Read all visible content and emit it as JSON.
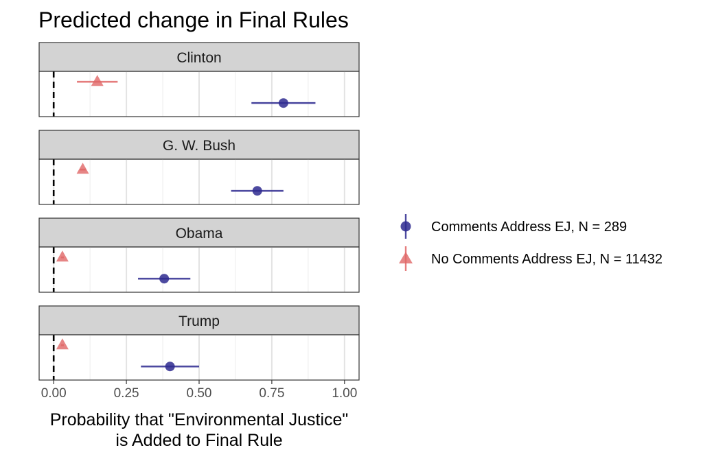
{
  "chart_data": {
    "type": "scatter",
    "title": "Predicted change in Final Rules",
    "xlabel": "Probability that \"Environmental Justice\"\nis Added to Final Rule",
    "ylabel": "",
    "xlim": [
      -0.05,
      1.05
    ],
    "xticks": [
      "0.00",
      "0.25",
      "0.50",
      "0.75",
      "1.00"
    ],
    "xtick_values": [
      0,
      0.25,
      0.5,
      0.75,
      1.0
    ],
    "reference_line": 0,
    "grid": true,
    "legend_position": "right",
    "panels": [
      "Clinton",
      "G. W. Bush",
      "Obama",
      "Trump"
    ],
    "series": [
      {
        "name": "Comments Address EJ, N = 289",
        "shape": "circle",
        "color": "#2e2a8f",
        "points": [
          {
            "panel": "Clinton",
            "estimate": 0.79,
            "lower": 0.68,
            "upper": 0.9
          },
          {
            "panel": "G. W. Bush",
            "estimate": 0.7,
            "lower": 0.61,
            "upper": 0.79
          },
          {
            "panel": "Obama",
            "estimate": 0.38,
            "lower": 0.29,
            "upper": 0.47
          },
          {
            "panel": "Trump",
            "estimate": 0.4,
            "lower": 0.3,
            "upper": 0.5
          }
        ]
      },
      {
        "name": "No Comments Address EJ, N = 11432",
        "shape": "triangle",
        "color": "#e06666",
        "points": [
          {
            "panel": "Clinton",
            "estimate": 0.15,
            "lower": 0.08,
            "upper": 0.22
          },
          {
            "panel": "G. W. Bush",
            "estimate": 0.1,
            "lower": 0.09,
            "upper": 0.11
          },
          {
            "panel": "Obama",
            "estimate": 0.03,
            "lower": 0.025,
            "upper": 0.035
          },
          {
            "panel": "Trump",
            "estimate": 0.03,
            "lower": 0.025,
            "upper": 0.035
          }
        ]
      }
    ]
  }
}
